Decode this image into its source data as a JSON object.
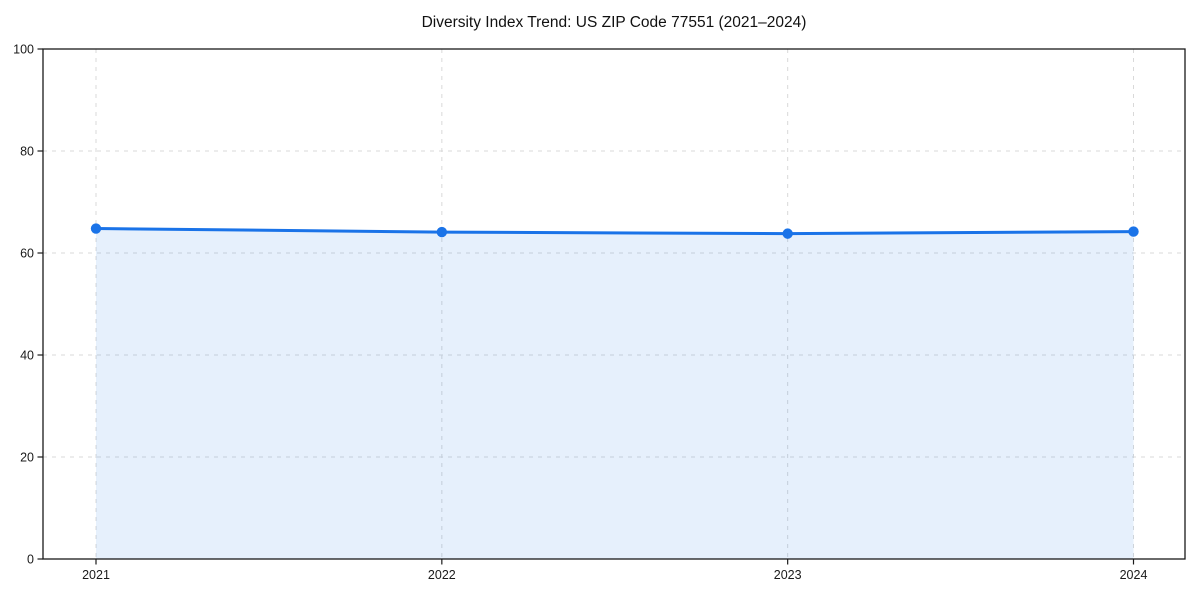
{
  "chart_data": {
    "type": "area",
    "title": "Diversity Index Trend: US ZIP Code 77551 (2021–2024)",
    "categories": [
      "2021",
      "2022",
      "2023",
      "2024"
    ],
    "series": [
      {
        "name": "Diversity Index",
        "values": [
          64.8,
          64.1,
          63.8,
          64.2
        ]
      }
    ],
    "xlabel": "",
    "ylabel": "",
    "ylim": [
      0,
      100
    ],
    "y_ticks": [
      0,
      20,
      40,
      60,
      80,
      100
    ],
    "grid": "dashed",
    "legend_position": "none",
    "colors": {
      "line": "#1a73e8",
      "marker": "#1a73e8",
      "area_fill": "rgba(26,115,232,0.11)",
      "grid_line": "#d9d9d9",
      "spine": "#1a1a1a",
      "tick_text": "#1a1a1a",
      "title_text": "#111111",
      "background": "#ffffff"
    }
  }
}
